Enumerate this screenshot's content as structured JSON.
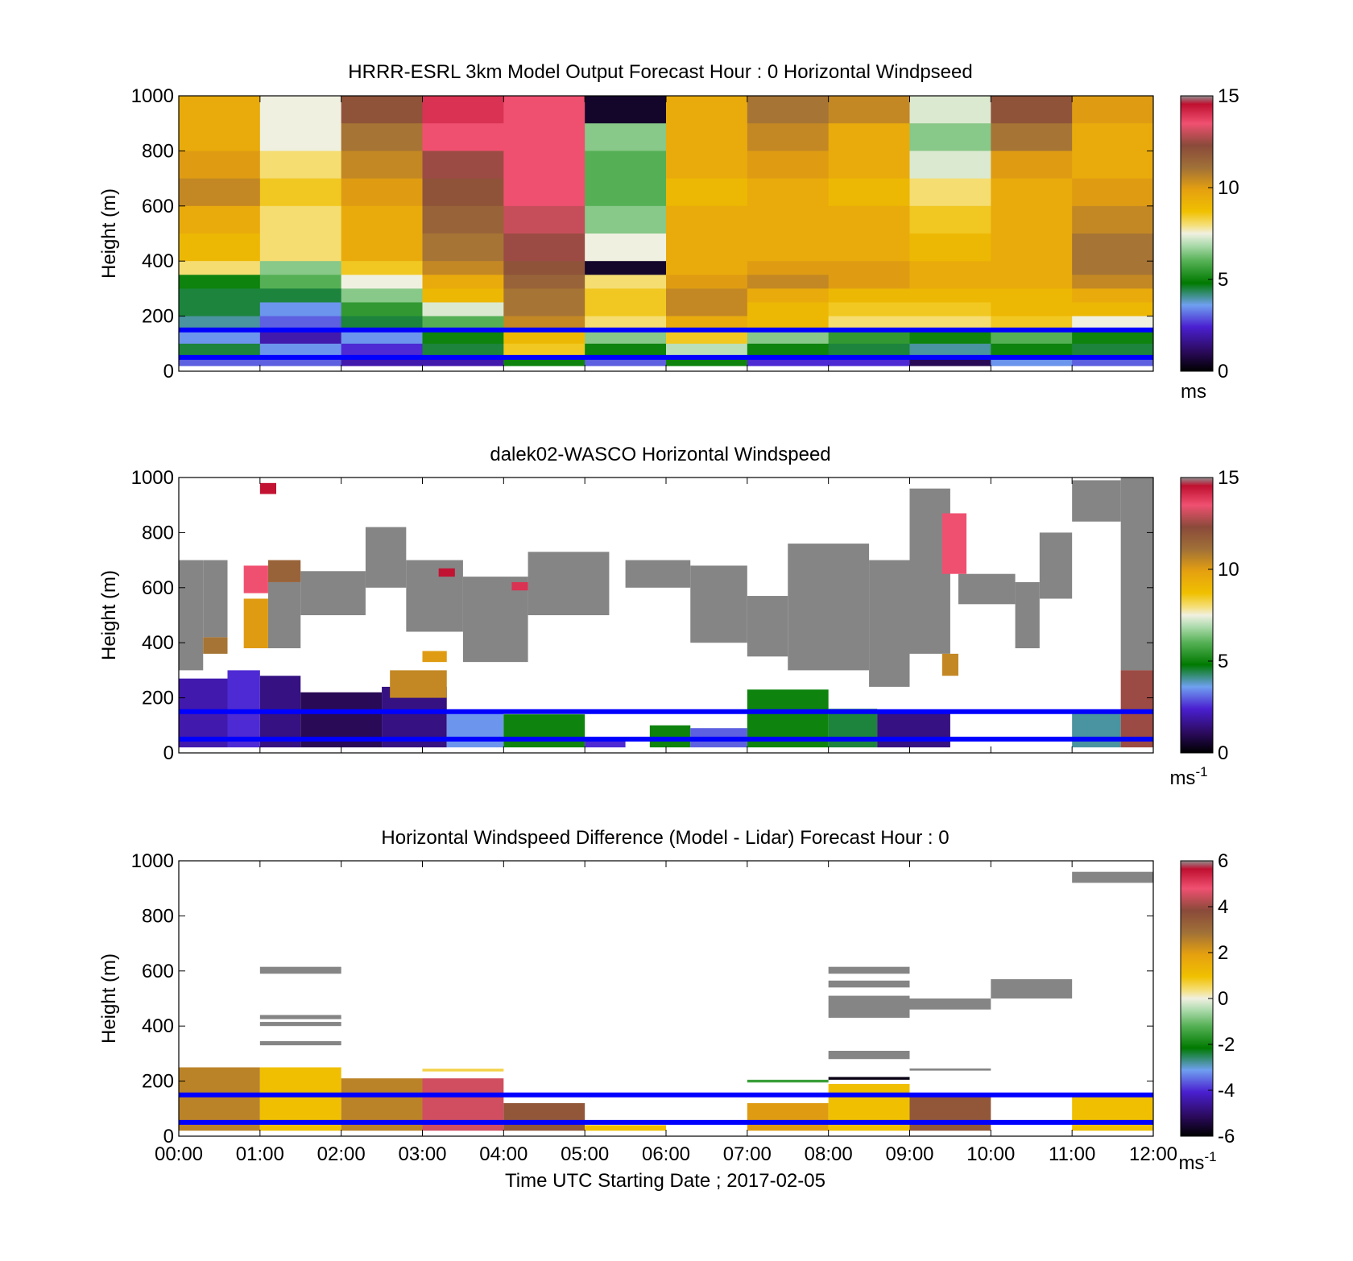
{
  "figure": {
    "xlabel": "Time UTC  Starting Date ; 2017-02-05",
    "x_ticks": [
      "00:00",
      "01:00",
      "02:00",
      "03:00",
      "04:00",
      "05:00",
      "06:00",
      "07:00",
      "08:00",
      "09:00",
      "10:00",
      "11:00",
      "12:00"
    ],
    "boundary_line_color": "#0000ff",
    "boundary_lines_height_m": [
      150,
      50
    ]
  },
  "chart_data": [
    {
      "type": "heatmap",
      "title": "HRRR-ESRL 3km Model Output   Forecast Hour : 0 Horizontal Windpseed",
      "ylabel": "Height (m)",
      "ylim": [
        0,
        1000
      ],
      "y_ticks": [
        "0",
        "200",
        "400",
        "600",
        "800",
        "1000"
      ],
      "colorbar": {
        "min": 0,
        "max": 15,
        "ticks": [
          "0",
          "5",
          "10",
          "15"
        ],
        "unit": "ms"
      },
      "columns_hours": [
        0,
        1,
        2,
        3,
        4,
        5,
        6,
        7,
        8,
        9,
        10,
        11
      ],
      "rows": [
        {
          "y0": 900,
          "y1": 1000,
          "values": [
            9.5,
            7.5,
            12,
            14,
            13.5,
            0.5,
            9.5,
            11,
            10.5,
            7.3,
            12,
            10
          ]
        },
        {
          "y0": 800,
          "y1": 900,
          "values": [
            9.5,
            7.5,
            11,
            13.5,
            13.5,
            6.5,
            9.5,
            10.5,
            9.5,
            6.5,
            11,
            9.5
          ]
        },
        {
          "y0": 700,
          "y1": 800,
          "values": [
            10,
            8,
            10.5,
            12.5,
            13.5,
            6,
            9.5,
            10,
            9.5,
            7.3,
            10,
            9.5
          ]
        },
        {
          "y0": 600,
          "y1": 700,
          "values": [
            10.5,
            8.5,
            10,
            12,
            13.5,
            6,
            9,
            9.5,
            9,
            8,
            9.5,
            10
          ]
        },
        {
          "y0": 500,
          "y1": 600,
          "values": [
            9.5,
            8,
            9.5,
            11.5,
            13,
            6.5,
            9.5,
            9.5,
            9.5,
            8.5,
            9.5,
            10.5
          ]
        },
        {
          "y0": 400,
          "y1": 500,
          "values": [
            9,
            8,
            9.5,
            11,
            12.5,
            7.5,
            9.5,
            9.5,
            9.5,
            9,
            9.5,
            11
          ]
        },
        {
          "y0": 350,
          "y1": 400,
          "values": [
            8,
            6.5,
            8.5,
            10.5,
            12,
            0.5,
            9.5,
            10,
            10,
            9.5,
            9.5,
            11
          ]
        },
        {
          "y0": 300,
          "y1": 350,
          "values": [
            5,
            6,
            7.5,
            9.5,
            11.5,
            8,
            10,
            10.5,
            10,
            9.5,
            9.5,
            10.5
          ]
        },
        {
          "y0": 250,
          "y1": 300,
          "values": [
            4.5,
            4.5,
            6.5,
            9,
            11,
            8.5,
            10.5,
            9.5,
            9,
            9,
            9,
            9.5
          ]
        },
        {
          "y0": 200,
          "y1": 250,
          "values": [
            4.5,
            3.5,
            5.5,
            7.3,
            11,
            8.5,
            10.5,
            9,
            8.5,
            8.5,
            9,
            9
          ]
        },
        {
          "y0": 150,
          "y1": 200,
          "values": [
            4,
            3,
            4.5,
            6,
            10.5,
            8,
            9.5,
            9,
            8,
            8,
            8.5,
            7.5
          ]
        },
        {
          "y0": 100,
          "y1": 150,
          "values": [
            3.5,
            2,
            3.5,
            5,
            9,
            6.5,
            8.5,
            6.5,
            5.5,
            5,
            6,
            5
          ]
        },
        {
          "y0": 50,
          "y1": 100,
          "values": [
            4.5,
            3.5,
            2.5,
            4.5,
            8.5,
            5,
            7,
            5,
            4.5,
            4,
            5,
            4.5
          ]
        },
        {
          "y0": 20,
          "y1": 50,
          "values": [
            3,
            3,
            2,
            2,
            5,
            3,
            5,
            2.5,
            2.5,
            1,
            3.5,
            3
          ]
        }
      ]
    },
    {
      "type": "heatmap",
      "title": "dalek02-WASCO  Horizontal Windspeed",
      "ylabel": "Height (m)",
      "ylim": [
        0,
        1000
      ],
      "y_ticks": [
        "0",
        "200",
        "400",
        "600",
        "800",
        "1000"
      ],
      "colorbar": {
        "min": 0,
        "max": 15,
        "ticks": [
          "0",
          "5",
          "10",
          "15"
        ],
        "unit": "ms",
        "unit_exponent": "-1"
      },
      "segments": [
        {
          "t0": 0.0,
          "t1": 0.6,
          "y0": 20,
          "y1": 270,
          "v": 2.0
        },
        {
          "t0": 0.6,
          "t1": 1.0,
          "y0": 20,
          "y1": 300,
          "v": 2.5
        },
        {
          "t0": 1.0,
          "t1": 1.5,
          "y0": 20,
          "y1": 280,
          "v": 1.5
        },
        {
          "t0": 1.5,
          "t1": 2.5,
          "y0": 20,
          "y1": 220,
          "v": 1.0
        },
        {
          "t0": 2.5,
          "t1": 3.3,
          "y0": 20,
          "y1": 240,
          "v": 1.5
        },
        {
          "t0": 3.3,
          "t1": 4.0,
          "y0": 20,
          "y1": 150,
          "v": 3.5
        },
        {
          "t0": 4.0,
          "t1": 5.0,
          "y0": 20,
          "y1": 140,
          "v": 5.0
        },
        {
          "t0": 5.0,
          "t1": 5.5,
          "y0": 20,
          "y1": 50,
          "v": 2.5
        },
        {
          "t0": 5.8,
          "t1": 6.3,
          "y0": 20,
          "y1": 100,
          "v": 5.0
        },
        {
          "t0": 6.3,
          "t1": 7.0,
          "y0": 20,
          "y1": 90,
          "v": 3.0
        },
        {
          "t0": 7.0,
          "t1": 8.0,
          "y0": 20,
          "y1": 230,
          "v": 5.0
        },
        {
          "t0": 8.0,
          "t1": 8.6,
          "y0": 20,
          "y1": 160,
          "v": 4.5
        },
        {
          "t0": 8.6,
          "t1": 9.5,
          "y0": 20,
          "y1": 150,
          "v": 1.5
        },
        {
          "t0": 11.0,
          "t1": 11.6,
          "y0": 20,
          "y1": 150,
          "v": 4.0
        },
        {
          "t0": 11.6,
          "t1": 12.0,
          "y0": 20,
          "y1": 300,
          "v": 12.5
        },
        {
          "t0": 0.8,
          "t1": 1.1,
          "y0": 580,
          "y1": 680,
          "v": 13.5
        },
        {
          "t0": 1.0,
          "t1": 1.2,
          "y0": 940,
          "y1": 980,
          "v": 14.5
        },
        {
          "t0": 3.2,
          "t1": 3.4,
          "y0": 640,
          "y1": 670,
          "v": 14.5
        },
        {
          "t0": 4.1,
          "t1": 4.3,
          "y0": 590,
          "y1": 620,
          "v": 14.0
        },
        {
          "t0": 9.4,
          "t1": 9.7,
          "y0": 650,
          "y1": 870,
          "v": 13.5
        },
        {
          "t0": 9.4,
          "t1": 9.6,
          "y0": 280,
          "y1": 360,
          "v": 10.5
        },
        {
          "t0": 0.3,
          "t1": 0.6,
          "y0": 360,
          "y1": 420,
          "v": 11.0
        },
        {
          "t0": 0.8,
          "t1": 1.1,
          "y0": 380,
          "y1": 560,
          "v": 10.0
        },
        {
          "t0": 1.1,
          "t1": 1.5,
          "y0": 620,
          "y1": 700,
          "v": 11.5
        },
        {
          "t0": 2.6,
          "t1": 3.3,
          "y0": 200,
          "y1": 300,
          "v": 10.5
        },
        {
          "t0": 3.0,
          "t1": 3.3,
          "y0": 330,
          "y1": 370,
          "v": 10.0
        }
      ],
      "no_match_gray": [
        {
          "t0": 0.0,
          "t1": 0.3,
          "y0": 300,
          "y1": 700
        },
        {
          "t0": 0.3,
          "t1": 0.6,
          "y0": 420,
          "y1": 700
        },
        {
          "t0": 1.1,
          "t1": 1.5,
          "y0": 380,
          "y1": 620
        },
        {
          "t0": 1.5,
          "t1": 2.3,
          "y0": 500,
          "y1": 660
        },
        {
          "t0": 2.3,
          "t1": 2.8,
          "y0": 600,
          "y1": 820
        },
        {
          "t0": 2.8,
          "t1": 3.5,
          "y0": 440,
          "y1": 700
        },
        {
          "t0": 3.5,
          "t1": 4.3,
          "y0": 330,
          "y1": 640
        },
        {
          "t0": 4.3,
          "t1": 5.3,
          "y0": 500,
          "y1": 730
        },
        {
          "t0": 5.5,
          "t1": 6.3,
          "y0": 600,
          "y1": 700
        },
        {
          "t0": 6.3,
          "t1": 7.0,
          "y0": 400,
          "y1": 680
        },
        {
          "t0": 7.0,
          "t1": 7.5,
          "y0": 350,
          "y1": 570
        },
        {
          "t0": 7.5,
          "t1": 8.5,
          "y0": 300,
          "y1": 760
        },
        {
          "t0": 8.5,
          "t1": 9.0,
          "y0": 240,
          "y1": 700
        },
        {
          "t0": 9.0,
          "t1": 9.5,
          "y0": 360,
          "y1": 960
        },
        {
          "t0": 9.6,
          "t1": 10.3,
          "y0": 540,
          "y1": 650
        },
        {
          "t0": 10.3,
          "t1": 10.6,
          "y0": 380,
          "y1": 620
        },
        {
          "t0": 10.6,
          "t1": 11.0,
          "y0": 560,
          "y1": 800
        },
        {
          "t0": 11.0,
          "t1": 11.6,
          "y0": 840,
          "y1": 990
        },
        {
          "t0": 11.6,
          "t1": 12.0,
          "y0": 300,
          "y1": 1000
        }
      ]
    },
    {
      "type": "heatmap",
      "title": "Horizontal Windspeed Difference (Model - Lidar) Forecast Hour : 0",
      "ylabel": "Height (m)",
      "ylim": [
        0,
        1000
      ],
      "y_ticks": [
        "0",
        "200",
        "400",
        "600",
        "800",
        "1000"
      ],
      "colorbar": {
        "min": -6,
        "max": 6,
        "ticks": [
          "-6",
          "-4",
          "-2",
          "0",
          "2",
          "4",
          "6"
        ],
        "unit": "ms",
        "unit_exponent": "-1"
      },
      "segments": [
        {
          "t0": 0,
          "t1": 1,
          "y0": 20,
          "y1": 250,
          "v": 2.5
        },
        {
          "t0": 1,
          "t1": 2,
          "y0": 20,
          "y1": 250,
          "v": 1.0
        },
        {
          "t0": 2,
          "t1": 3,
          "y0": 20,
          "y1": 210,
          "v": 2.5
        },
        {
          "t0": 3,
          "t1": 4,
          "y0": 20,
          "y1": 210,
          "v": 4.5
        },
        {
          "t0": 4,
          "t1": 5,
          "y0": 20,
          "y1": 120,
          "v": 3.5
        },
        {
          "t0": 5,
          "t1": 6,
          "y0": 20,
          "y1": 40,
          "v": 1.0
        },
        {
          "t0": 7,
          "t1": 8,
          "y0": 20,
          "y1": 120,
          "v": 2.0
        },
        {
          "t0": 8,
          "t1": 9,
          "y0": 20,
          "y1": 190,
          "v": 1.0
        },
        {
          "t0": 9,
          "t1": 10,
          "y0": 20,
          "y1": 150,
          "v": 3.5
        },
        {
          "t0": 11,
          "t1": 12,
          "y0": 20,
          "y1": 150,
          "v": 1.0
        },
        {
          "t0": 3,
          "t1": 4,
          "y0": 235,
          "y1": 245,
          "v": 0.6
        },
        {
          "t0": 7,
          "t1": 8,
          "y0": 195,
          "y1": 205,
          "v": -1.5
        },
        {
          "t0": 8,
          "t1": 9,
          "y0": 205,
          "y1": 215,
          "v": -5.8
        }
      ],
      "no_match_gray": [
        {
          "t0": 1,
          "t1": 2,
          "y0": 590,
          "y1": 615
        },
        {
          "t0": 1,
          "t1": 2,
          "y0": 425,
          "y1": 440
        },
        {
          "t0": 1,
          "t1": 2,
          "y0": 400,
          "y1": 415
        },
        {
          "t0": 1,
          "t1": 2,
          "y0": 330,
          "y1": 345
        },
        {
          "t0": 8,
          "t1": 9,
          "y0": 590,
          "y1": 615
        },
        {
          "t0": 8,
          "t1": 9,
          "y0": 540,
          "y1": 565
        },
        {
          "t0": 8,
          "t1": 9,
          "y0": 430,
          "y1": 510
        },
        {
          "t0": 8,
          "t1": 9,
          "y0": 280,
          "y1": 310
        },
        {
          "t0": 9,
          "t1": 10,
          "y0": 460,
          "y1": 500
        },
        {
          "t0": 9,
          "t1": 10,
          "y0": 238,
          "y1": 246
        },
        {
          "t0": 10,
          "t1": 11,
          "y0": 500,
          "y1": 570
        },
        {
          "t0": 11,
          "t1": 12,
          "y0": 920,
          "y1": 960
        }
      ]
    }
  ]
}
